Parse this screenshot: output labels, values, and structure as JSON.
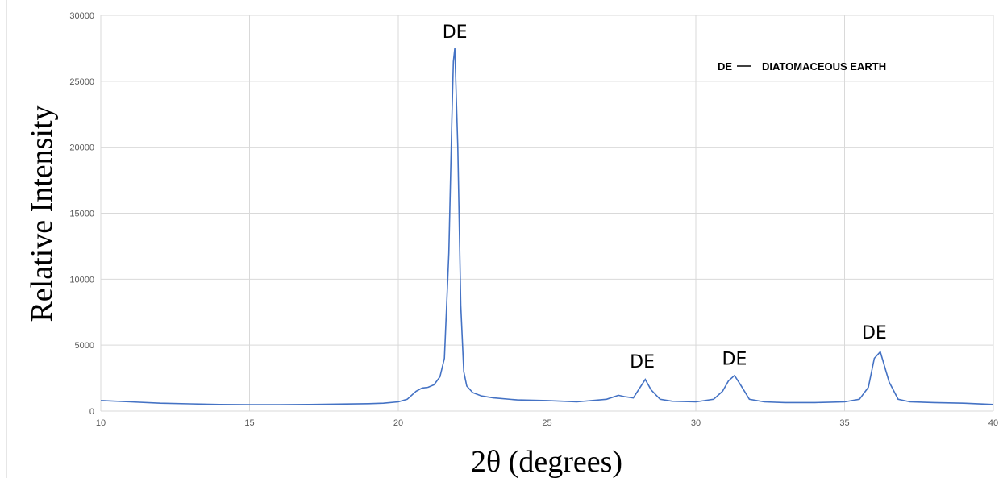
{
  "chart_data": {
    "type": "line",
    "title": "",
    "xlabel": "2θ (degrees)",
    "ylabel": "Relative Intensity",
    "xlim": [
      10,
      40
    ],
    "ylim": [
      0,
      30000
    ],
    "xticks": [
      "10",
      "15",
      "20",
      "25",
      "30",
      "35",
      "40"
    ],
    "yticks": [
      "0",
      "5000",
      "10000",
      "15000",
      "20000",
      "25000",
      "30000"
    ],
    "grid": true,
    "line_color": "#4472C4",
    "series": [
      {
        "x": [
          10,
          11,
          12,
          13,
          14,
          15,
          16,
          17,
          18,
          19,
          19.5,
          20,
          20.3,
          20.6,
          20.8,
          21.0,
          21.2,
          21.4,
          21.55,
          21.7,
          21.8,
          21.85,
          21.9,
          22.0,
          22.1,
          22.2,
          22.3,
          22.5,
          22.8,
          23.2,
          24,
          25,
          25.5,
          26,
          27,
          27.4,
          27.6,
          27.9,
          28.1,
          28.3,
          28.5,
          28.8,
          29.2,
          30,
          30.6,
          30.9,
          31.1,
          31.3,
          31.5,
          31.8,
          32.3,
          33,
          34,
          35,
          35.5,
          35.8,
          36.0,
          36.2,
          36.5,
          36.8,
          37.2,
          38,
          39,
          40
        ],
        "y": [
          800,
          700,
          600,
          550,
          500,
          480,
          490,
          500,
          530,
          560,
          600,
          700,
          900,
          1500,
          1750,
          1800,
          2000,
          2600,
          4000,
          12000,
          22000,
          26500,
          27500,
          20000,
          8000,
          3000,
          1900,
          1400,
          1150,
          1000,
          850,
          800,
          750,
          700,
          900,
          1200,
          1100,
          1000,
          1700,
          2400,
          1600,
          900,
          750,
          700,
          900,
          1500,
          2300,
          2700,
          2000,
          900,
          700,
          650,
          650,
          700,
          900,
          1800,
          4000,
          4500,
          2200,
          900,
          700,
          650,
          600,
          500
        ]
      }
    ],
    "annotations": [
      {
        "text": "DE",
        "x": 21.9,
        "y": 28300
      },
      {
        "text": "DE",
        "x": 28.2,
        "y": 3300
      },
      {
        "text": "DE",
        "x": 31.3,
        "y": 3500
      },
      {
        "text": "DE",
        "x": 36.0,
        "y": 5500
      }
    ],
    "legend": {
      "placement": "top-right",
      "label": "DE",
      "text": "DIATOMACEOUS EARTH"
    }
  }
}
